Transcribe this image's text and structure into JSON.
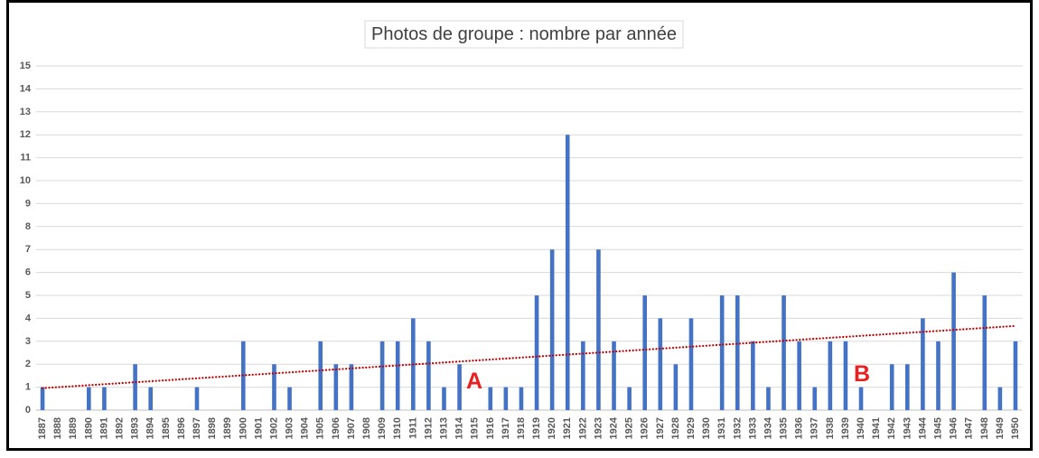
{
  "chart_data": {
    "type": "bar",
    "title": "Photos de groupe : nombre par année",
    "xlabel": "",
    "ylabel": "",
    "categories": [
      "1887",
      "1888",
      "1889",
      "1890",
      "1891",
      "1892",
      "1893",
      "1894",
      "1895",
      "1896",
      "1897",
      "1898",
      "1899",
      "1900",
      "1901",
      "1902",
      "1903",
      "1904",
      "1905",
      "1906",
      "1907",
      "1908",
      "1909",
      "1910",
      "1911",
      "1912",
      "1913",
      "1914",
      "1915",
      "1916",
      "1917",
      "1918",
      "1919",
      "1920",
      "1921",
      "1922",
      "1923",
      "1924",
      "1925",
      "1926",
      "1927",
      "1928",
      "1929",
      "1930",
      "1931",
      "1932",
      "1933",
      "1934",
      "1935",
      "1936",
      "1937",
      "1938",
      "1939",
      "1940",
      "1941",
      "1942",
      "1943",
      "1944",
      "1945",
      "1946",
      "1947",
      "1948",
      "1949",
      "1950"
    ],
    "values": [
      1,
      0,
      0,
      1,
      1,
      0,
      2,
      1,
      0,
      0,
      1,
      0,
      0,
      3,
      0,
      2,
      1,
      0,
      3,
      2,
      2,
      0,
      3,
      3,
      4,
      3,
      1,
      2,
      0,
      1,
      1,
      1,
      5,
      7,
      12,
      3,
      7,
      3,
      1,
      5,
      4,
      2,
      4,
      0,
      5,
      5,
      3,
      1,
      5,
      3,
      1,
      3,
      3,
      1,
      0,
      2,
      2,
      4,
      3,
      6,
      0,
      5,
      1,
      3
    ],
    "ylim": [
      0,
      15
    ],
    "yticks": [
      0,
      1,
      2,
      3,
      4,
      5,
      6,
      7,
      8,
      9,
      10,
      11,
      12,
      13,
      14,
      15
    ],
    "grid": true,
    "legend": "none",
    "trendline": "linear",
    "annotations": [
      {
        "text": "A"
      },
      {
        "text": "B"
      }
    ]
  },
  "colors": {
    "bars": "#4472C4",
    "trendline": "#C00000",
    "annotations": "#E8201F",
    "grid": "#D9D9D9",
    "frame": "#000000",
    "text": "#595959"
  }
}
